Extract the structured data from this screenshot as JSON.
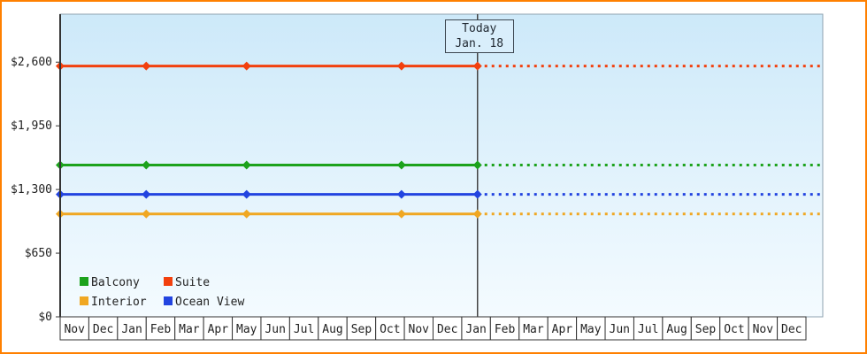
{
  "chart_data": {
    "type": "line",
    "title": "",
    "x_labels": [
      "Nov",
      "Dec",
      "Jan",
      "Feb",
      "Mar",
      "Apr",
      "May",
      "Jun",
      "Jul",
      "Aug",
      "Sep",
      "Oct",
      "Nov",
      "Dec",
      "Jan",
      "Feb",
      "Mar",
      "Apr",
      "May",
      "Jun",
      "Jul",
      "Aug",
      "Sep",
      "Oct",
      "Nov",
      "Dec"
    ],
    "y_tick_values": [
      0,
      650,
      1300,
      1950,
      2600
    ],
    "y_tick_labels": [
      "$0",
      "$650",
      "$1,300",
      "$1,950",
      "$2,600"
    ],
    "ylim": [
      0,
      3090
    ],
    "grid": false,
    "legend_position": "bottom-left",
    "today": {
      "line1": "Today",
      "line2": "Jan. 18",
      "x_index": 14.55
    },
    "marker_x_indices": [
      0,
      3.0,
      6.5,
      11.9,
      14.55
    ],
    "series": [
      {
        "name": "Suite",
        "color": "#f2400e",
        "value": 2560,
        "style": "solid-then-dotted"
      },
      {
        "name": "Balcony",
        "color": "#1ca21c",
        "value": 1550,
        "style": "solid-then-dotted"
      },
      {
        "name": "Ocean View",
        "color": "#2244e0",
        "value": 1250,
        "style": "solid-then-dotted"
      },
      {
        "name": "Interior",
        "color": "#f0a722",
        "value": 1050,
        "style": "solid-then-dotted"
      }
    ],
    "legend": [
      {
        "label": "Balcony",
        "color": "#1ca21c"
      },
      {
        "label": "Suite",
        "color": "#f2400e"
      },
      {
        "label": "Interior",
        "color": "#f0a722"
      },
      {
        "label": "Ocean View",
        "color": "#2244e0"
      }
    ],
    "colors": {
      "frame_border": "#ff8000",
      "plot_bg_top": "#cde9f9",
      "plot_bg_bottom": "#f4fbff",
      "axis": "#333333",
      "plot_edge": "#8fa3b0",
      "today_line": "#444444",
      "month_cell_bg": "#ffffff",
      "text": "#222222"
    }
  }
}
